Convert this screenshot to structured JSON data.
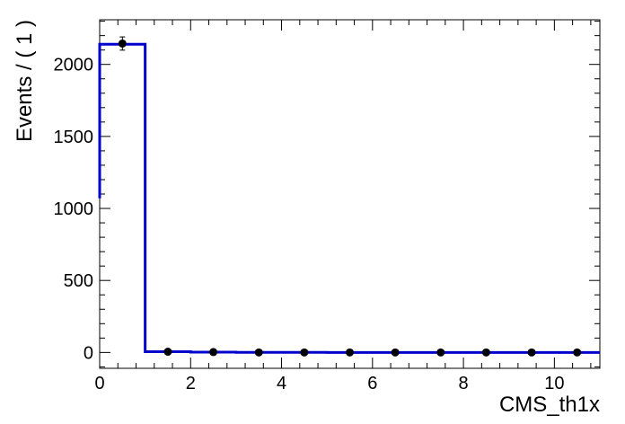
{
  "chart_data": {
    "type": "line",
    "title": "",
    "xlabel": "CMS_th1x",
    "ylabel": "Events / ( 1 )",
    "xlim": [
      0,
      11
    ],
    "ylim": [
      -110,
      2310
    ],
    "x_ticks": [
      "0",
      "2",
      "4",
      "6",
      "8",
      "10"
    ],
    "y_ticks": [
      "0",
      "500",
      "1000",
      "1500",
      "2000"
    ],
    "grid": false,
    "legend": "none",
    "series": [
      {
        "kind": "points_with_errors",
        "color": "#000000",
        "x": [
          0.5,
          1.5,
          2.5,
          3.5,
          4.5,
          5.5,
          6.5,
          7.5,
          8.5,
          9.5,
          10.5
        ],
        "y": [
          2145,
          5,
          3,
          0,
          0,
          0,
          0,
          0,
          0,
          0,
          0
        ],
        "yerr": [
          46,
          2.2,
          1.7,
          0,
          0,
          0,
          0,
          0,
          0,
          0,
          0
        ]
      },
      {
        "kind": "step",
        "color": "#0000cc",
        "edges": [
          0,
          1,
          2,
          3,
          4,
          5,
          6,
          7,
          8,
          9,
          10,
          11
        ],
        "values": [
          2140,
          5,
          2.5,
          1,
          0.5,
          0.3,
          0.2,
          0.1,
          0.1,
          0.1,
          0.1
        ]
      }
    ]
  }
}
